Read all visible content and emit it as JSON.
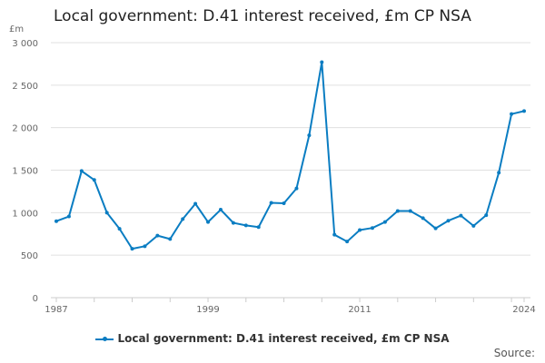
{
  "chart_data": {
    "type": "line",
    "title": "Local government: D.41 interest received, £m CP NSA",
    "ylabel": "£m",
    "xlabel": "",
    "ylim": [
      0,
      3000
    ],
    "yticks": [
      0,
      500,
      1000,
      1500,
      2000,
      2500,
      3000
    ],
    "ytick_labels": [
      "0",
      "500",
      "1 000",
      "1 500",
      "2 000",
      "2 500",
      "3 000"
    ],
    "xtick_labels": [
      "1987",
      "1999",
      "2011",
      "2024"
    ],
    "grid": true,
    "legend_position": "bottom",
    "color": "#0a7dc2",
    "x": [
      1987,
      1988,
      1989,
      1990,
      1991,
      1992,
      1993,
      1994,
      1995,
      1996,
      1997,
      1998,
      1999,
      2000,
      2001,
      2002,
      2003,
      2004,
      2005,
      2006,
      2007,
      2008,
      2009,
      2010,
      2011,
      2012,
      2013,
      2014,
      2015,
      2016,
      2017,
      2018,
      2019,
      2020,
      2021,
      2022,
      2023,
      2024
    ],
    "series": [
      {
        "name": "Local government: D.41 interest received, £m CP NSA",
        "values": [
          900,
          955,
          1490,
          1385,
          1000,
          810,
          575,
          605,
          730,
          690,
          925,
          1105,
          890,
          1035,
          880,
          850,
          830,
          1115,
          1110,
          1285,
          1910,
          2770,
          740,
          660,
          795,
          820,
          890,
          1020,
          1020,
          935,
          815,
          905,
          965,
          845,
          970,
          1470,
          2160,
          2195
        ]
      }
    ]
  },
  "legend": {
    "label": "Local government: D.41 interest received, £m CP NSA"
  },
  "source": {
    "label": "Source:"
  }
}
